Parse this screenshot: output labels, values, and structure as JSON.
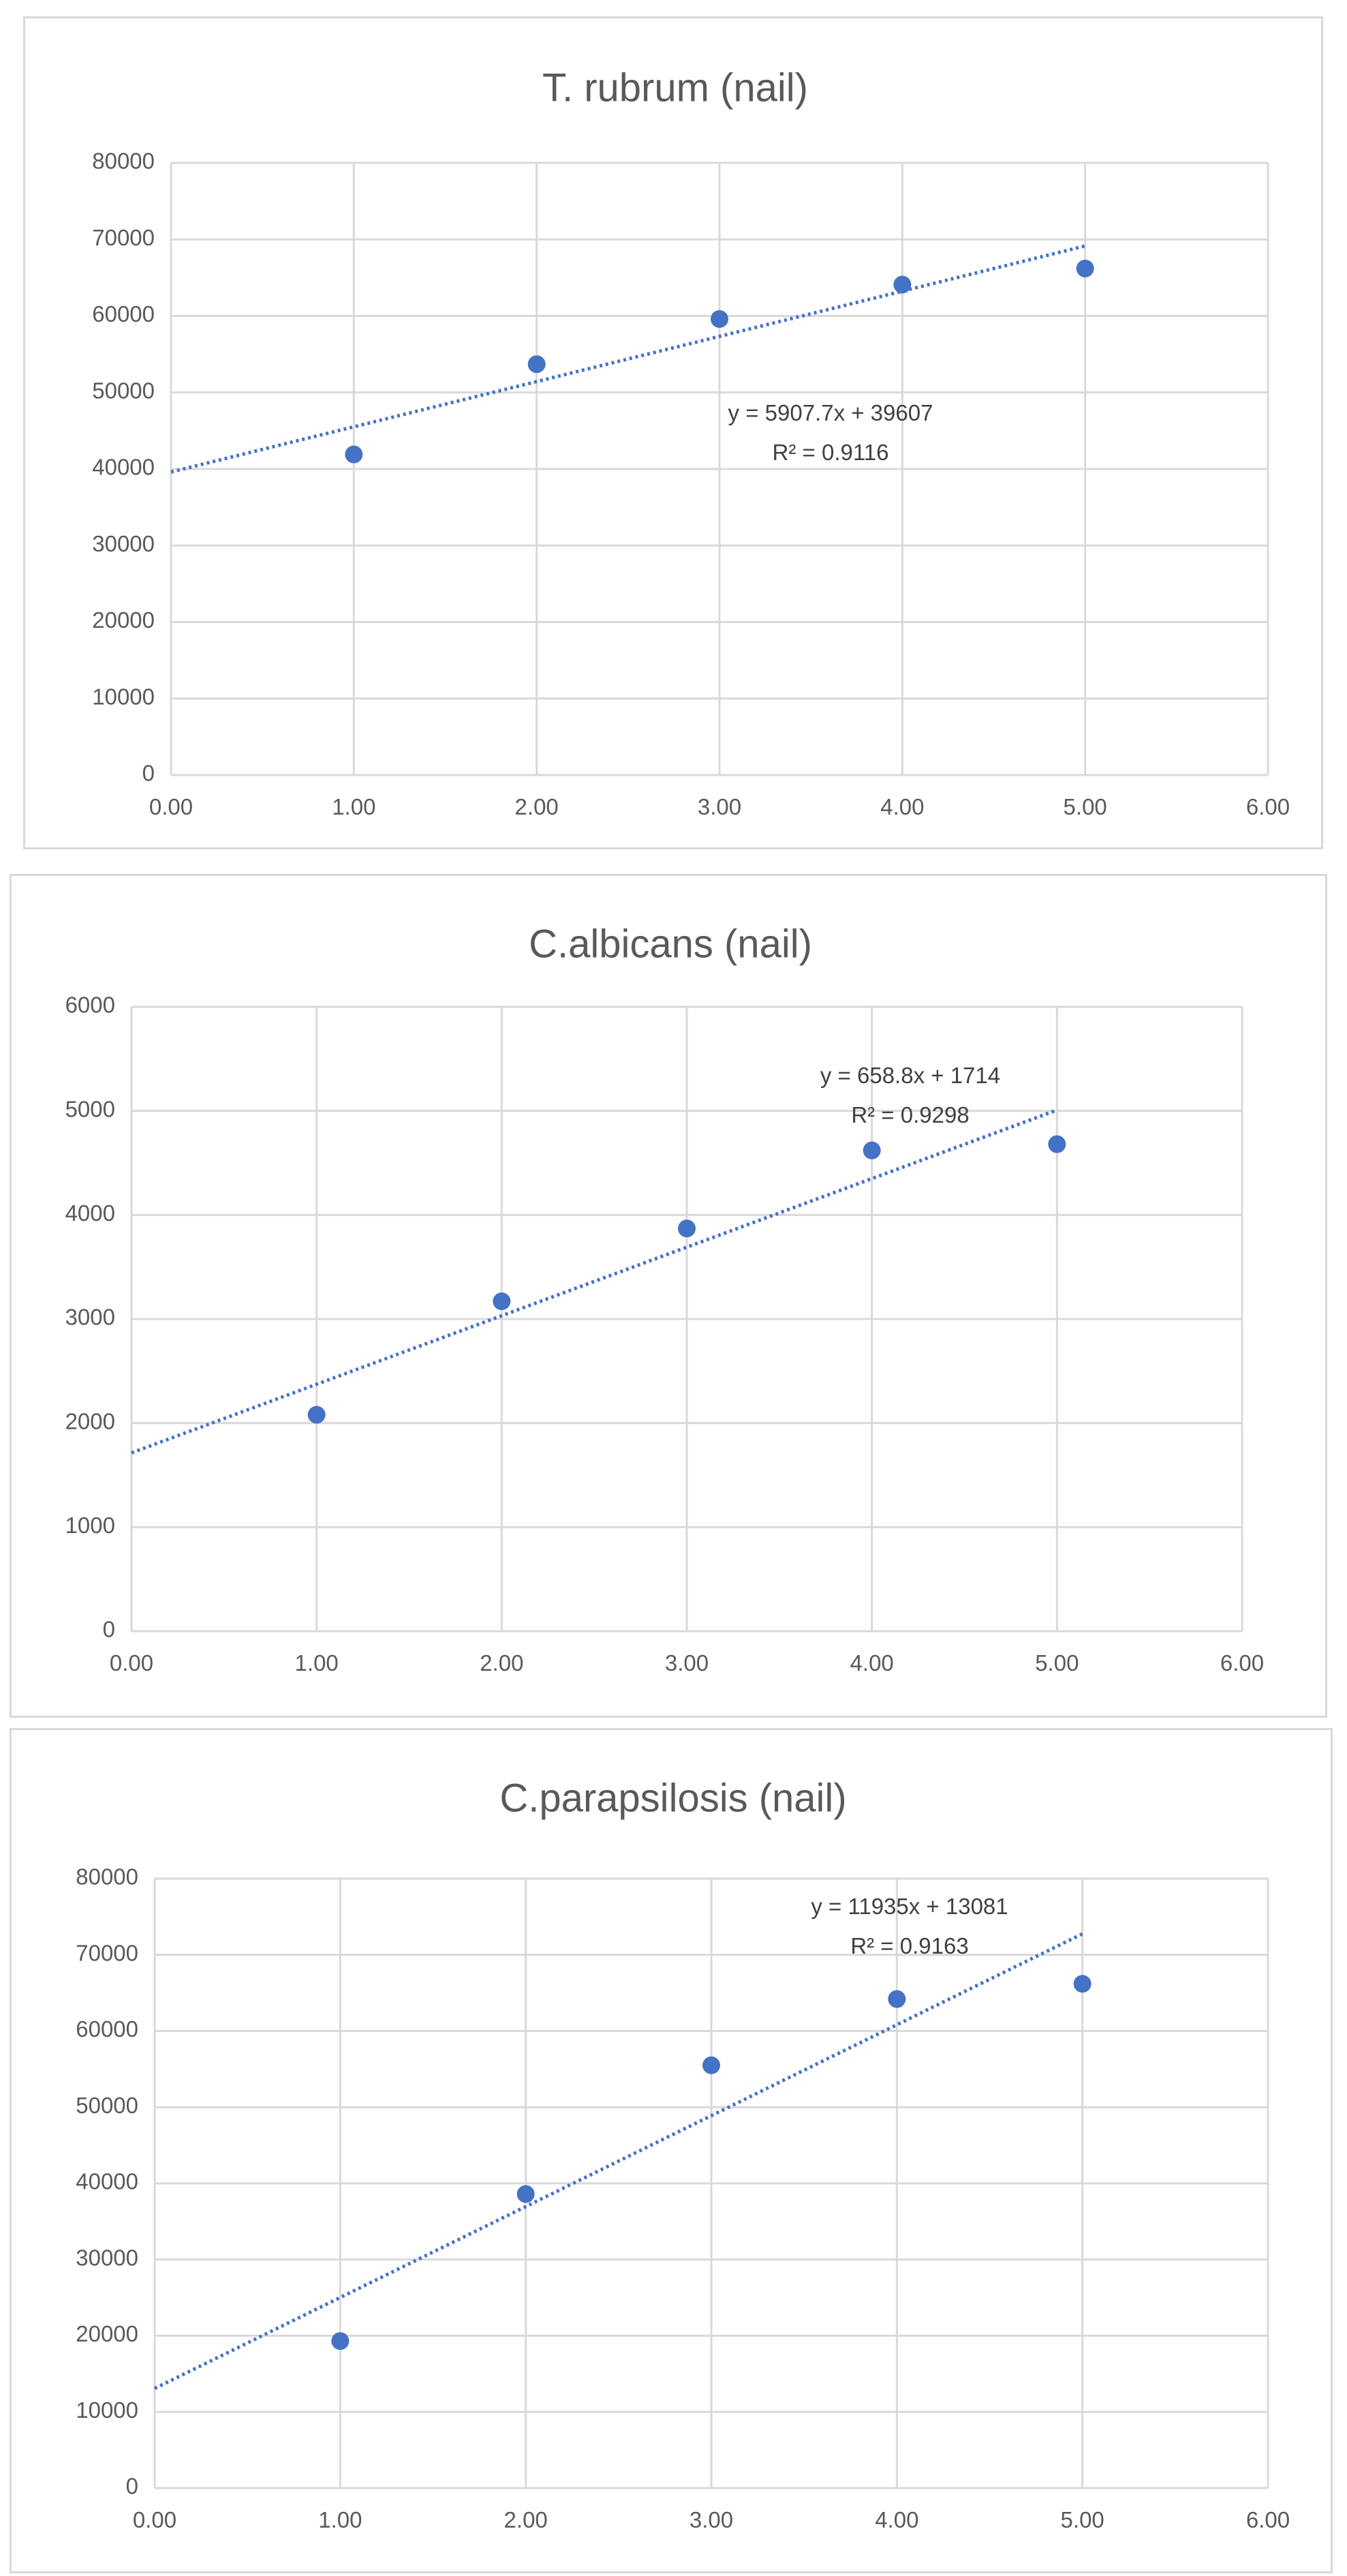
{
  "chart_data": [
    {
      "type": "scatter",
      "title": "T. rubrum (nail)",
      "x_ticks": [
        "0.00",
        "1.00",
        "2.00",
        "3.00",
        "4.00",
        "5.00",
        "6.00"
      ],
      "y_ticks": [
        "0",
        "10000",
        "20000",
        "30000",
        "40000",
        "50000",
        "60000",
        "70000",
        "80000"
      ],
      "xlim": [
        0,
        6
      ],
      "ylim": [
        0,
        80000
      ],
      "grid": true,
      "marker_color": "#4472c4",
      "points": [
        {
          "x": 1,
          "y": 41900
        },
        {
          "x": 2,
          "y": 53700
        },
        {
          "x": 3,
          "y": 59600
        },
        {
          "x": 4,
          "y": 64100
        },
        {
          "x": 5,
          "y": 66200
        }
      ],
      "trendline": {
        "slope": 5907.7,
        "intercept": 39607,
        "x_range": [
          0,
          5
        ],
        "style": "dotted"
      },
      "equation": "y = 5907.7x + 39607",
      "r_squared": "R² = 0.9116"
    },
    {
      "type": "scatter",
      "title": "C.albicans (nail)",
      "x_ticks": [
        "0.00",
        "1.00",
        "2.00",
        "3.00",
        "4.00",
        "5.00",
        "6.00"
      ],
      "y_ticks": [
        "0",
        "1000",
        "2000",
        "3000",
        "4000",
        "5000",
        "6000"
      ],
      "xlim": [
        0,
        6
      ],
      "ylim": [
        0,
        6000
      ],
      "grid": true,
      "marker_color": "#4472c4",
      "points": [
        {
          "x": 1,
          "y": 2080
        },
        {
          "x": 2,
          "y": 3170
        },
        {
          "x": 3,
          "y": 3870
        },
        {
          "x": 4,
          "y": 4620
        },
        {
          "x": 5,
          "y": 4680
        }
      ],
      "trendline": {
        "slope": 658.8,
        "intercept": 1714,
        "x_range": [
          0,
          5
        ],
        "style": "dotted"
      },
      "equation": "y = 658.8x + 1714",
      "r_squared": "R² = 0.9298"
    },
    {
      "type": "scatter",
      "title": "C.parapsilosis (nail)",
      "x_ticks": [
        "0.00",
        "1.00",
        "2.00",
        "3.00",
        "4.00",
        "5.00",
        "6.00"
      ],
      "y_ticks": [
        "0",
        "10000",
        "20000",
        "30000",
        "40000",
        "50000",
        "60000",
        "70000",
        "80000"
      ],
      "xlim": [
        0,
        6
      ],
      "ylim": [
        0,
        80000
      ],
      "grid": true,
      "marker_color": "#4472c4",
      "points": [
        {
          "x": 1,
          "y": 19300
        },
        {
          "x": 2,
          "y": 38600
        },
        {
          "x": 3,
          "y": 55500
        },
        {
          "x": 4,
          "y": 64200
        },
        {
          "x": 5,
          "y": 66200
        }
      ],
      "trendline": {
        "slope": 11935,
        "intercept": 13081,
        "x_range": [
          0,
          5
        ],
        "style": "dotted"
      },
      "equation": "y = 11935x + 13081",
      "r_squared": "R² = 0.9163"
    }
  ]
}
